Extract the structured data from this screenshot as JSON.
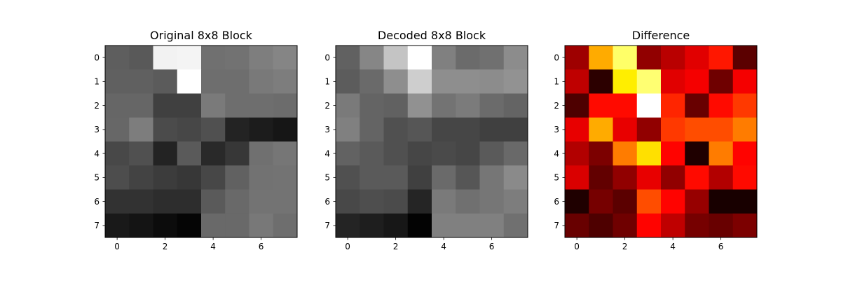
{
  "chart_data": [
    {
      "type": "heatmap",
      "title": "Original 8x8 Block",
      "colormap": "gray",
      "vmin": 0,
      "vmax": 255,
      "x_ticks": [
        "0",
        "2",
        "4",
        "6"
      ],
      "y_ticks": [
        "0",
        "1",
        "2",
        "3",
        "4",
        "5",
        "6",
        "7"
      ],
      "values": [
        [
          94,
          89,
          242,
          244,
          112,
          114,
          126,
          133
        ],
        [
          96,
          96,
          91,
          255,
          110,
          110,
          121,
          125
        ],
        [
          102,
          102,
          64,
          64,
          122,
          110,
          110,
          108
        ],
        [
          103,
          125,
          75,
          71,
          80,
          35,
          28,
          22
        ],
        [
          72,
          80,
          35,
          90,
          41,
          55,
          112,
          118
        ],
        [
          77,
          67,
          60,
          55,
          71,
          97,
          114,
          115
        ],
        [
          50,
          50,
          45,
          45,
          90,
          105,
          115,
          115
        ],
        [
          25,
          20,
          12,
          5,
          105,
          105,
          120,
          110
        ]
      ]
    },
    {
      "type": "heatmap",
      "title": "Decoded 8x8 Block",
      "colormap": "gray",
      "vmin": 0,
      "vmax": 255,
      "x_ticks": [
        "0",
        "2",
        "4",
        "6"
      ],
      "y_ticks": [
        "0",
        "1",
        "2",
        "3",
        "4",
        "5",
        "6",
        "7"
      ],
      "values": [
        [
          97,
          134,
          196,
          255,
          128,
          107,
          112,
          140
        ],
        [
          92,
          106,
          142,
          206,
          142,
          142,
          140,
          146
        ],
        [
          122,
          100,
          97,
          145,
          115,
          123,
          107,
          100
        ],
        [
          128,
          100,
          80,
          86,
          70,
          70,
          64,
          64
        ],
        [
          98,
          90,
          80,
          70,
          74,
          70,
          90,
          105
        ],
        [
          80,
          90,
          90,
          64,
          106,
          86,
          118,
          138
        ],
        [
          72,
          78,
          75,
          37,
          122,
          112,
          118,
          125
        ],
        [
          36,
          30,
          23,
          3,
          128,
          128,
          128,
          112
        ]
      ]
    },
    {
      "type": "heatmap",
      "title": "Difference",
      "colormap": "hot",
      "vmin": 0,
      "vmax": 1,
      "x_ticks": [
        "0",
        "2",
        "4",
        "6"
      ],
      "y_ticks": [
        "0",
        "1",
        "2",
        "3",
        "4",
        "5",
        "6",
        "7"
      ],
      "values": [
        [
          0.22,
          0.62,
          0.85,
          0.2,
          0.26,
          0.32,
          0.4,
          0.12
        ],
        [
          0.27,
          0.05,
          0.72,
          0.86,
          0.32,
          0.35,
          0.15,
          0.35
        ],
        [
          0.1,
          0.38,
          0.38,
          1.0,
          0.42,
          0.14,
          0.38,
          0.45
        ],
        [
          0.33,
          0.62,
          0.33,
          0.2,
          0.45,
          0.48,
          0.48,
          0.55
        ],
        [
          0.25,
          0.17,
          0.55,
          0.7,
          0.37,
          0.03,
          0.55,
          0.37
        ],
        [
          0.31,
          0.13,
          0.2,
          0.33,
          0.2,
          0.38,
          0.25,
          0.38
        ],
        [
          0.03,
          0.16,
          0.12,
          0.48,
          0.37,
          0.21,
          0.02,
          0.02
        ],
        [
          0.14,
          0.1,
          0.15,
          0.37,
          0.27,
          0.16,
          0.14,
          0.17
        ]
      ]
    }
  ]
}
